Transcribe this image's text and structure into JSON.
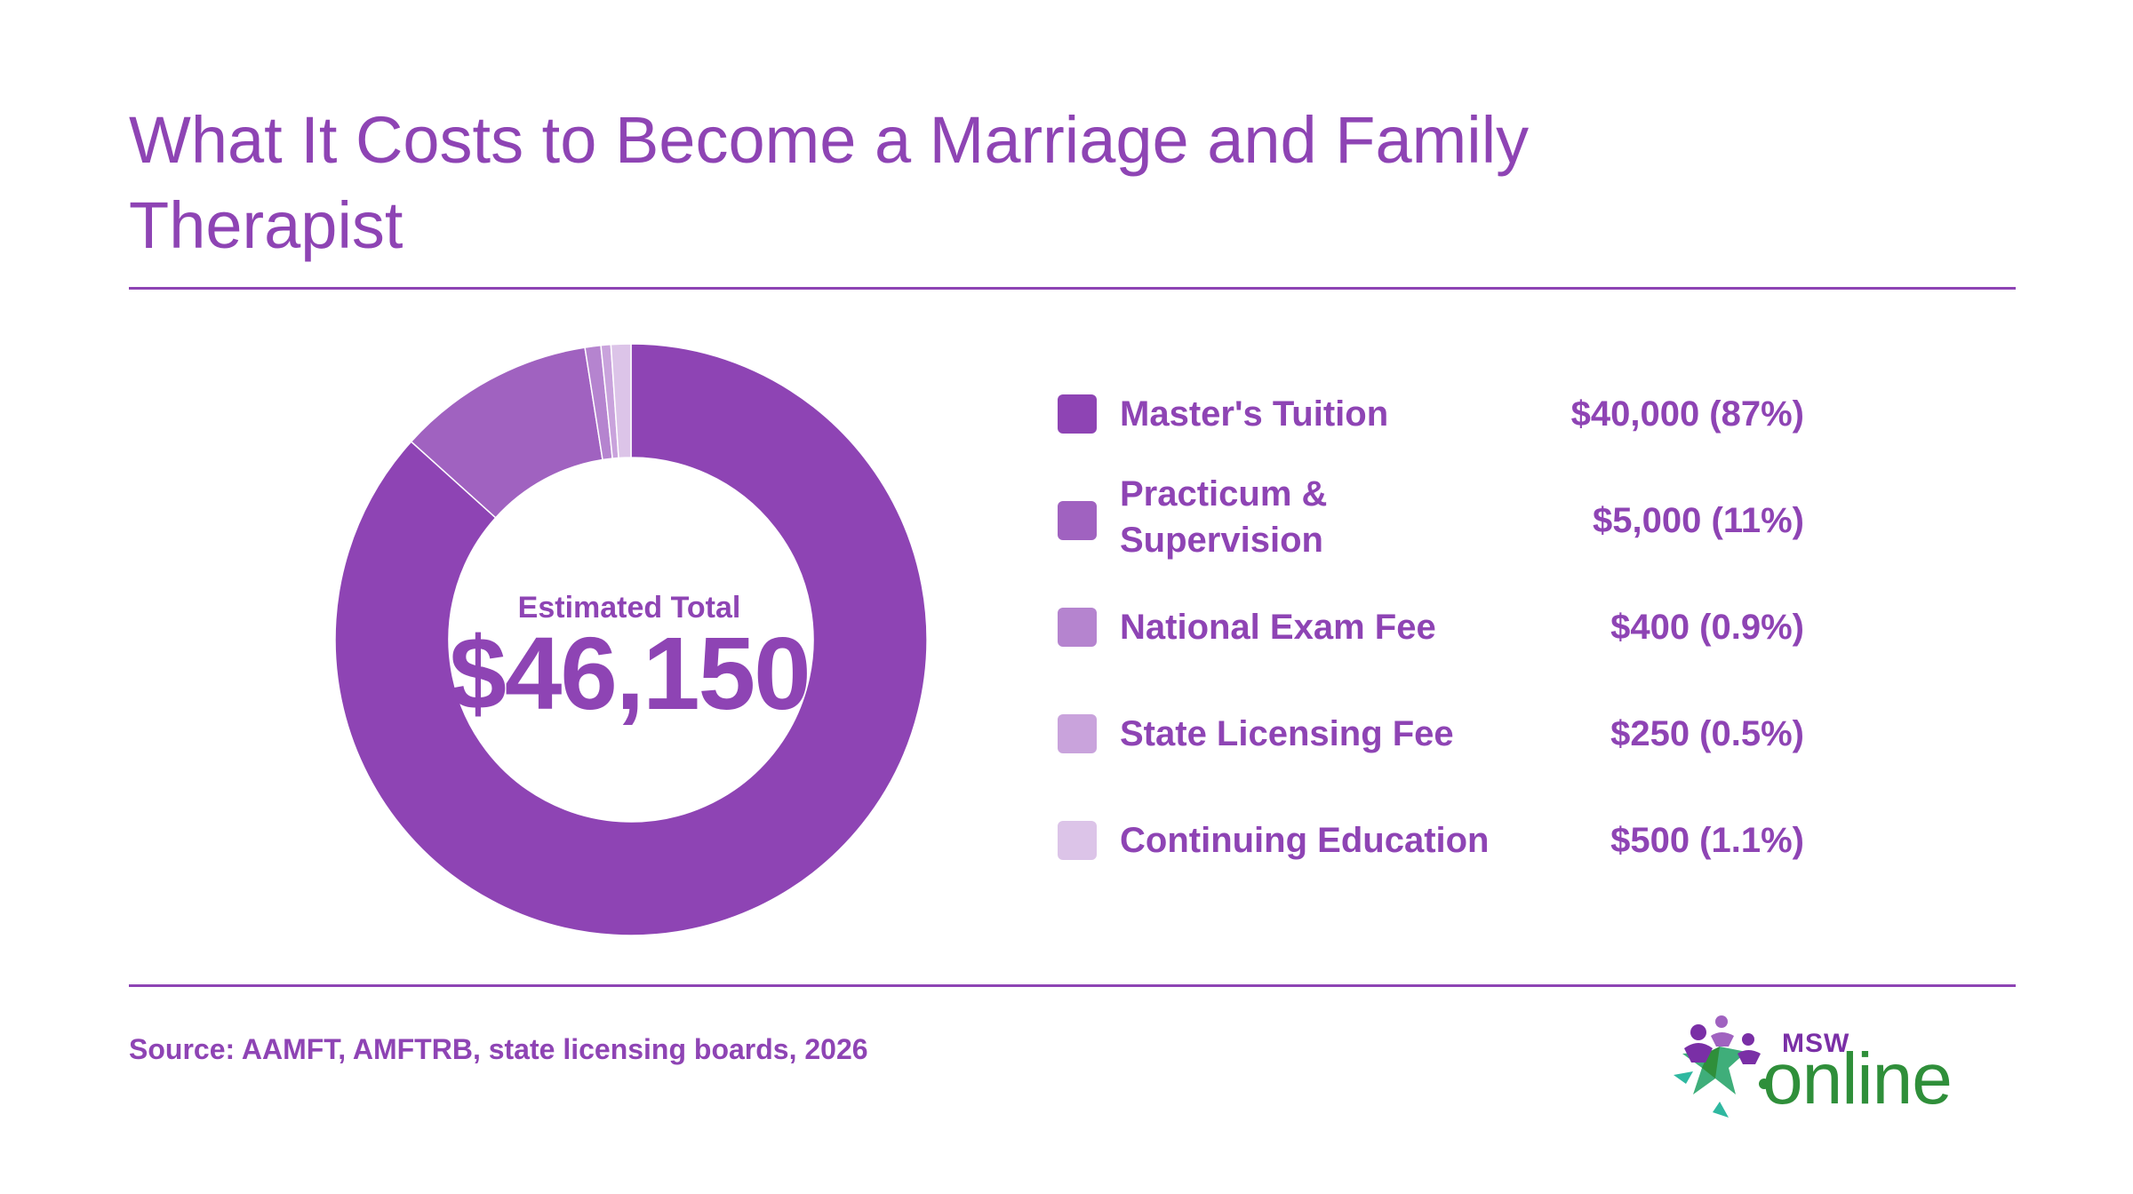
{
  "title": "What It Costs to Become a Marriage and Family Therapist",
  "center": {
    "label": "Estimated Total",
    "value": "$46,150"
  },
  "source": "Source: AAMFT, AMFTRB, state licensing boards, 2026",
  "logo": {
    "msw": "MSW",
    "online": "online"
  },
  "colors": {
    "accent": "#8e44b4",
    "logo_green": "#2f8f3a"
  },
  "chart_data": {
    "type": "pie",
    "variant": "donut",
    "title": "What It Costs to Become a Marriage and Family Therapist",
    "total_label": "Estimated Total",
    "total": 46150,
    "legend_placement": "right",
    "slices": [
      {
        "label": "Master's Tuition",
        "value": 40000,
        "value_label": "$40,000 (87%)",
        "color": "#8e44b4"
      },
      {
        "label": "Practicum & Supervision",
        "value": 5000,
        "value_label": "$5,000 (11%)",
        "color": "#a062c0"
      },
      {
        "label": "National Exam Fee",
        "value": 400,
        "value_label": "$400 (0.9%)",
        "color": "#b584cf"
      },
      {
        "label": "State Licensing Fee",
        "value": 250,
        "value_label": "$250 (0.5%)",
        "color": "#c9a3dc"
      },
      {
        "label": "Continuing Education",
        "value": 500,
        "value_label": "$500 (1.1%)",
        "color": "#dcc4e8"
      }
    ]
  }
}
